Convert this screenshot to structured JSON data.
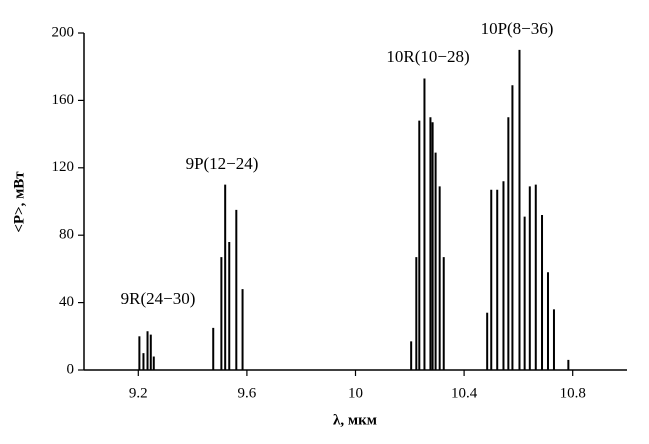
{
  "chart_data": {
    "type": "stem",
    "x": [
      9.204,
      9.219,
      9.234,
      9.246,
      9.257,
      9.476,
      9.506,
      9.52,
      9.535,
      9.561,
      9.584,
      10.205,
      10.224,
      10.235,
      10.254,
      10.276,
      10.284,
      10.295,
      10.31,
      10.325,
      10.485,
      10.5,
      10.522,
      10.545,
      10.563,
      10.578,
      10.604,
      10.623,
      10.642,
      10.664,
      10.687,
      10.709,
      10.731,
      10.784
    ],
    "values": [
      20,
      10,
      23,
      21,
      8,
      25,
      67,
      110,
      76,
      95,
      48,
      17,
      67,
      148,
      173,
      150,
      147,
      129,
      109,
      67,
      34,
      107,
      107,
      112,
      150,
      169,
      190,
      91,
      109,
      110,
      92,
      58,
      36,
      6
    ],
    "color": "#000000",
    "xlabel": "λ, мкм",
    "ylabel": "<P>, мВт",
    "xlim": [
      9.0,
      11.0
    ],
    "xticks": [
      9.2,
      9.6,
      10,
      10.4,
      10.8
    ],
    "ylim": [
      0,
      200
    ],
    "yticks": [
      0,
      40,
      80,
      120,
      160,
      200
    ],
    "annotations": [
      "9R(24−30)",
      "9P(12−24)",
      "10R(10−28)",
      "10P(8−36)"
    ]
  }
}
